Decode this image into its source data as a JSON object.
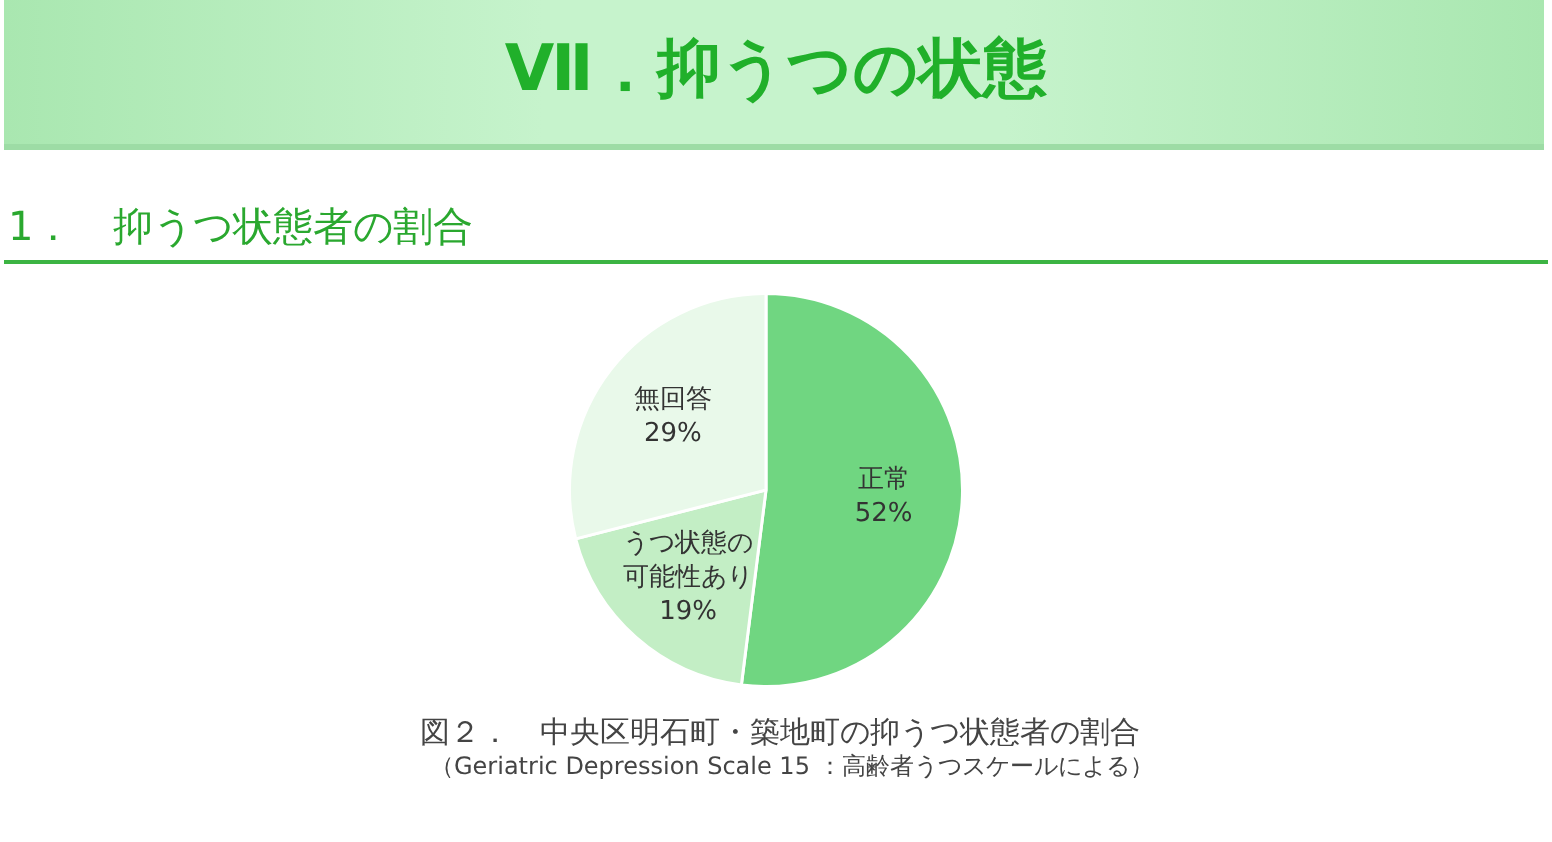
{
  "chart_data": {
    "type": "pie",
    "title": "Ⅶ．抑うつの状態",
    "subtitle": "1．　抑うつ状態者の割合",
    "categories": [
      "正常",
      "うつ状態の可能性あり",
      "無回答"
    ],
    "values": [
      52,
      19,
      29
    ],
    "colors": [
      "#70d681",
      "#c3eec5",
      "#e9f9ea"
    ],
    "value_labels": [
      "52%",
      "19%",
      "29%"
    ],
    "annotations": [
      "図２．　中央区明石町・築地町の抑うつ状態者の割合",
      "（Geriatric Depression Scale 15 ：高齢者うつスケールによる）"
    ]
  }
}
